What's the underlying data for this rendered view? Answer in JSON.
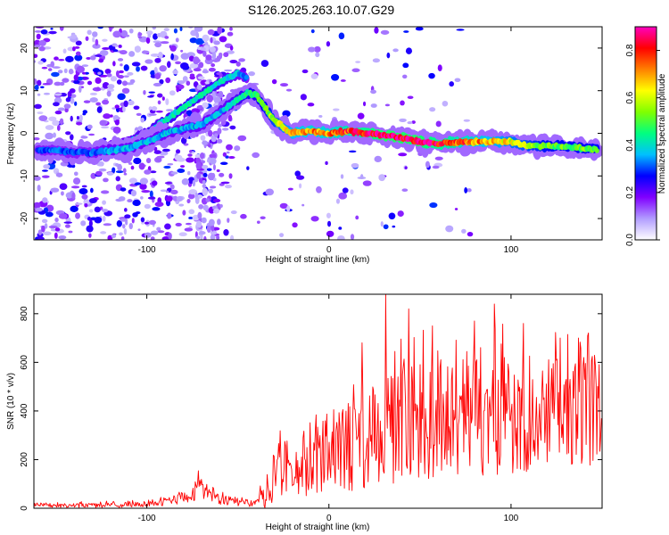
{
  "title": "S126.2025.263.10.07.G29",
  "chart_data": [
    {
      "type": "heatmap",
      "name": "spectrogram",
      "xlabel": "Height of straight line (km)",
      "ylabel": "Frequency (Hz)",
      "xlim": [
        -162,
        150
      ],
      "ylim": [
        -25,
        25
      ],
      "x_ticks": [
        -100,
        0,
        100
      ],
      "x_tick_labels": [
        "-100",
        "0",
        "100"
      ],
      "y_ticks": [
        -20,
        -10,
        0,
        10,
        20
      ],
      "y_tick_labels": [
        "-20",
        "-10",
        "0",
        "10",
        "20"
      ],
      "colorbar": {
        "label": "Normalized spectral amplitude",
        "range": [
          0.0,
          0.9
        ],
        "ticks": [
          0.0,
          0.2,
          0.4,
          0.6,
          0.8
        ],
        "tick_labels": [
          "0.0",
          "0.2",
          "0.4",
          "0.6",
          "0.8"
        ],
        "colors": [
          "#ffffff",
          "#b19cff",
          "#8000ff",
          "#0000ff",
          "#00c0ff",
          "#00ff80",
          "#80ff00",
          "#ffff00",
          "#ff8000",
          "#ff0000",
          "#ff00c0"
        ]
      },
      "ridge": {
        "x": [
          -160,
          -150,
          -140,
          -130,
          -120,
          -110,
          -100,
          -90,
          -80,
          -70,
          -60,
          -50,
          -45,
          -40,
          -35,
          -30,
          -25,
          -20,
          -10,
          0,
          10,
          20,
          30,
          40,
          50,
          60,
          70,
          80,
          90,
          100,
          110,
          120,
          130,
          140,
          148
        ],
        "y": [
          -4,
          -4,
          -4.5,
          -4.5,
          -4,
          -3.5,
          -2,
          0,
          1,
          2,
          5,
          8,
          9.5,
          9,
          6,
          3,
          1.5,
          0,
          0.5,
          0,
          0.5,
          0,
          -0.5,
          -1,
          -2,
          -2.5,
          -2,
          -2,
          -2,
          -2,
          -3,
          -3,
          -3,
          -3.5,
          -4
        ],
        "amplitude": [
          0.3,
          0.3,
          0.3,
          0.3,
          0.35,
          0.35,
          0.35,
          0.35,
          0.35,
          0.35,
          0.35,
          0.4,
          0.45,
          0.45,
          0.5,
          0.55,
          0.6,
          0.65,
          0.7,
          0.7,
          0.75,
          0.8,
          0.85,
          0.85,
          0.85,
          0.8,
          0.75,
          0.7,
          0.65,
          0.6,
          0.55,
          0.5,
          0.5,
          0.5,
          0.5
        ]
      },
      "upper_branch": {
        "x": [
          -130,
          -120,
          -110,
          -100,
          -90,
          -80,
          -70,
          -60,
          -50,
          -45
        ],
        "y": [
          -4,
          -3,
          -2,
          0,
          3,
          6,
          9,
          12,
          14,
          13
        ],
        "amplitude": [
          0.35,
          0.35,
          0.35,
          0.4,
          0.4,
          0.4,
          0.4,
          0.4,
          0.35,
          0.3
        ]
      }
    },
    {
      "type": "line",
      "name": "snr",
      "xlabel": "Height of straight line (km)",
      "ylabel": "SNR (10 * v/v)",
      "xlim": [
        -162,
        150
      ],
      "ylim": [
        0,
        880
      ],
      "x_ticks": [
        -100,
        0,
        100
      ],
      "x_tick_labels": [
        "-100",
        "0",
        "100"
      ],
      "y_ticks": [
        0,
        200,
        400,
        600,
        800
      ],
      "y_tick_labels": [
        "0",
        "200",
        "400",
        "600",
        "800"
      ],
      "color": "#ff0000",
      "envelope": {
        "x": [
          -162,
          -130,
          -110,
          -90,
          -80,
          -75,
          -70,
          -65,
          -60,
          -50,
          -40,
          -35,
          -30,
          -25,
          -20,
          -10,
          0,
          10,
          20,
          28,
          30,
          40,
          60,
          90,
          100,
          120,
          140,
          150
        ],
        "mean": [
          12,
          12,
          15,
          25,
          45,
          70,
          85,
          70,
          40,
          25,
          20,
          60,
          120,
          160,
          180,
          200,
          230,
          250,
          290,
          300,
          330,
          350,
          360,
          370,
          380,
          380,
          390,
          390
        ],
        "spread": [
          10,
          10,
          12,
          15,
          25,
          40,
          50,
          40,
          25,
          15,
          15,
          60,
          100,
          120,
          130,
          150,
          170,
          190,
          210,
          230,
          240,
          240,
          240,
          240,
          240,
          240,
          240,
          240
        ]
      },
      "peaks": [
        {
          "x": 31,
          "y": 880
        },
        {
          "x": 91,
          "y": 840
        },
        {
          "x": 44,
          "y": 820
        },
        {
          "x": 80,
          "y": 770
        },
        {
          "x": 107,
          "y": 760
        },
        {
          "x": 57,
          "y": 750
        },
        {
          "x": 137,
          "y": 700
        },
        {
          "x": 127,
          "y": 700
        },
        {
          "x": 18,
          "y": 680
        }
      ]
    }
  ]
}
